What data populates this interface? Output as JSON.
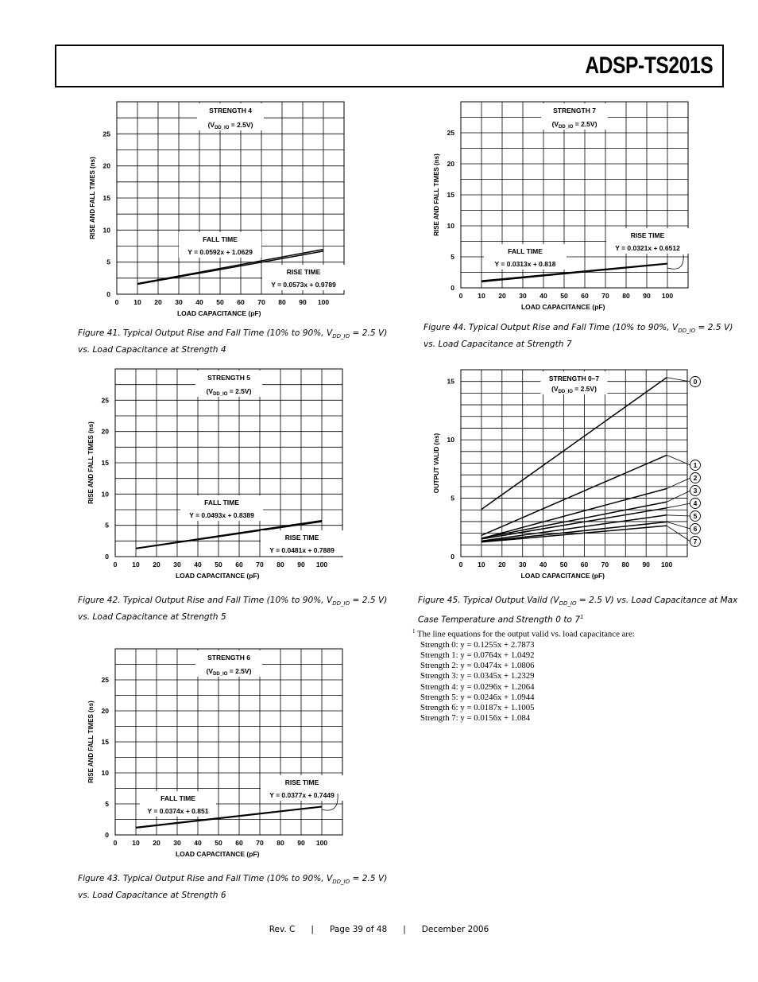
{
  "header": {
    "title": "ADSP-TS201S"
  },
  "chart_data": [
    {
      "id": "fig41",
      "type": "line",
      "title": "STRENGTH 4",
      "subtitle_v": "V",
      "subtitle_sub": "DD_IO",
      "subtitle_rest": " = 2.5V)",
      "xlabel": "LOAD CAPACITANCE (pF)",
      "ylabel": "RISE AND FALL TIMES (ns)",
      "xlim": [
        0,
        110
      ],
      "ylim": [
        0,
        30
      ],
      "xticks": [
        0,
        10,
        20,
        30,
        40,
        50,
        60,
        70,
        80,
        90,
        100
      ],
      "yticks": [
        0,
        5,
        10,
        15,
        20,
        25
      ],
      "series": [
        {
          "name": "FALL TIME",
          "equation": "Y = 0.0592x + 1.0629",
          "slope": 0.0592,
          "intercept": 1.0629,
          "x": [
            10,
            100
          ]
        },
        {
          "name": "RISE TIME",
          "equation": "Y = 0.0573x + 0.9789",
          "slope": 0.0573,
          "intercept": 0.9789,
          "x": [
            10,
            100
          ]
        }
      ]
    },
    {
      "id": "fig42",
      "type": "line",
      "title": "STRENGTH 5",
      "subtitle_v": "V",
      "subtitle_sub": "DD_IO",
      "subtitle_rest": " = 2.5V)",
      "xlabel": "LOAD CAPACITANCE (pF)",
      "ylabel": "RISE AND FALL TIMES (ns)",
      "xlim": [
        0,
        110
      ],
      "ylim": [
        0,
        30
      ],
      "xticks": [
        0,
        10,
        20,
        30,
        40,
        50,
        60,
        70,
        80,
        90,
        100
      ],
      "yticks": [
        0,
        5,
        10,
        15,
        20,
        25
      ],
      "series": [
        {
          "name": "FALL TIME",
          "equation": "Y = 0.0493x + 0.8389",
          "slope": 0.0493,
          "intercept": 0.8389,
          "x": [
            10,
            100
          ]
        },
        {
          "name": "RISE TIME",
          "equation": "Y = 0.0481x + 0.7889",
          "slope": 0.0481,
          "intercept": 0.7889,
          "x": [
            10,
            100
          ]
        }
      ]
    },
    {
      "id": "fig43",
      "type": "line",
      "title": "STRENGTH 6",
      "subtitle_v": "V",
      "subtitle_sub": "DD_IO",
      "subtitle_rest": " = 2.5V)",
      "xlabel": "LOAD CAPACITANCE (pF)",
      "ylabel": "RISE AND FALL TIMES (ns)",
      "xlim": [
        0,
        110
      ],
      "ylim": [
        0,
        30
      ],
      "xticks": [
        0,
        10,
        20,
        30,
        40,
        50,
        60,
        70,
        80,
        90,
        100
      ],
      "yticks": [
        0,
        5,
        10,
        15,
        20,
        25
      ],
      "series": [
        {
          "name": "FALL TIME",
          "equation": "Y = 0.0374x + 0.851",
          "slope": 0.0374,
          "intercept": 0.851,
          "x": [
            10,
            100
          ]
        },
        {
          "name": "RISE TIME",
          "equation": "Y = 0.0377x + 0.7449",
          "slope": 0.0377,
          "intercept": 0.7449,
          "x": [
            10,
            100
          ]
        }
      ]
    },
    {
      "id": "fig44",
      "type": "line",
      "title": "STRENGTH 7",
      "subtitle_v": "V",
      "subtitle_sub": "DD_IO",
      "subtitle_rest": " = 2.5V)",
      "xlabel": "LOAD CAPACITANCE (pF)",
      "ylabel": "RISE AND FALL TIMES (ns)",
      "xlim": [
        0,
        110
      ],
      "ylim": [
        0,
        30
      ],
      "xticks": [
        0,
        10,
        20,
        30,
        40,
        50,
        60,
        70,
        80,
        90,
        100
      ],
      "yticks": [
        0,
        5,
        10,
        15,
        20,
        25
      ],
      "series": [
        {
          "name": "FALL TIME",
          "equation": "Y = 0.0313x + 0.818",
          "slope": 0.0313,
          "intercept": 0.818,
          "x": [
            10,
            100
          ]
        },
        {
          "name": "RISE TIME",
          "equation": "Y = 0.0321x + 0.6512",
          "slope": 0.0321,
          "intercept": 0.6512,
          "x": [
            10,
            100
          ]
        }
      ]
    },
    {
      "id": "fig45",
      "type": "line",
      "title": "STRENGTH 0–7",
      "subtitle_v": "V",
      "subtitle_sub": "DD_IO",
      "subtitle_rest": " = 2.5V)",
      "xlabel": "LOAD CAPACITANCE (pF)",
      "ylabel": "OUTPUT VALID (ns)",
      "xlim": [
        0,
        110
      ],
      "ylim": [
        0,
        16
      ],
      "xticks": [
        0,
        10,
        20,
        30,
        40,
        50,
        60,
        70,
        80,
        90,
        100
      ],
      "yticks": [
        0,
        5,
        10,
        15
      ],
      "series": [
        {
          "name": "0",
          "slope": 0.1255,
          "intercept": 2.7873,
          "x": [
            10,
            100
          ]
        },
        {
          "name": "1",
          "slope": 0.0764,
          "intercept": 1.0492,
          "x": [
            10,
            100
          ]
        },
        {
          "name": "2",
          "slope": 0.0474,
          "intercept": 1.0806,
          "x": [
            10,
            100
          ]
        },
        {
          "name": "3",
          "slope": 0.0345,
          "intercept": 1.2329,
          "x": [
            10,
            100
          ]
        },
        {
          "name": "4",
          "slope": 0.0296,
          "intercept": 1.2064,
          "x": [
            10,
            100
          ]
        },
        {
          "name": "5",
          "slope": 0.0246,
          "intercept": 1.0944,
          "x": [
            10,
            100
          ]
        },
        {
          "name": "6",
          "slope": 0.0187,
          "intercept": 1.1005,
          "x": [
            10,
            100
          ]
        },
        {
          "name": "7",
          "slope": 0.0156,
          "intercept": 1.084,
          "x": [
            10,
            100
          ]
        }
      ]
    }
  ],
  "captions": {
    "fig41": {
      "pre": "Figure 41.  Typical Output Rise and Fall Time (10% to 90%, V",
      "sub": "DD_IO",
      "post": " = 2.5 V)",
      "line2": "vs. Load Capacitance at Strength 4"
    },
    "fig42": {
      "pre": "Figure 42.  Typical Output Rise and Fall Time (10% to 90%, V",
      "sub": "DD_IO",
      "post": " = 2.5 V)",
      "line2": "vs. Load Capacitance at Strength 5"
    },
    "fig43": {
      "pre": "Figure 43.  Typical Output Rise and Fall Time (10% to 90%, V",
      "sub": "DD_IO",
      "post": " = 2.5 V)",
      "line2": "vs. Load Capacitance at Strength 6"
    },
    "fig44": {
      "pre": "Figure 44.  Typical Output Rise and Fall Time (10% to 90%, V",
      "sub": "DD_IO",
      "post": " = 2.5 V)",
      "line2": "vs. Load Capacitance at Strength 7"
    },
    "fig45": {
      "pre": "Figure 45.  Typical Output Valid (V",
      "sub": "DD_IO",
      "post": " = 2.5 V) vs. Load Capacitance at Max",
      "line2": "Case Temperature and Strength 0 to 7",
      "sup": "1"
    }
  },
  "footnote": {
    "marker": "1",
    "intro": "The line equations for the output valid vs. load capacitance are:",
    "lines": [
      "Strength 0: y = 0.1255x + 2.7873",
      "Strength 1: y = 0.0764x + 1.0492",
      "Strength 2: y = 0.0474x + 1.0806",
      "Strength 3: y = 0.0345x + 1.2329",
      "Strength 4: y = 0.0296x + 1.2064",
      "Strength 5: y = 0.0246x + 1.0944",
      "Strength 6: y = 0.0187x + 1.1005",
      "Strength 7: y = 0.0156x + 1.084"
    ]
  },
  "footer": {
    "rev": "Rev. C",
    "sep": "|",
    "page": "Page 39 of 48",
    "date": "December 2006"
  }
}
